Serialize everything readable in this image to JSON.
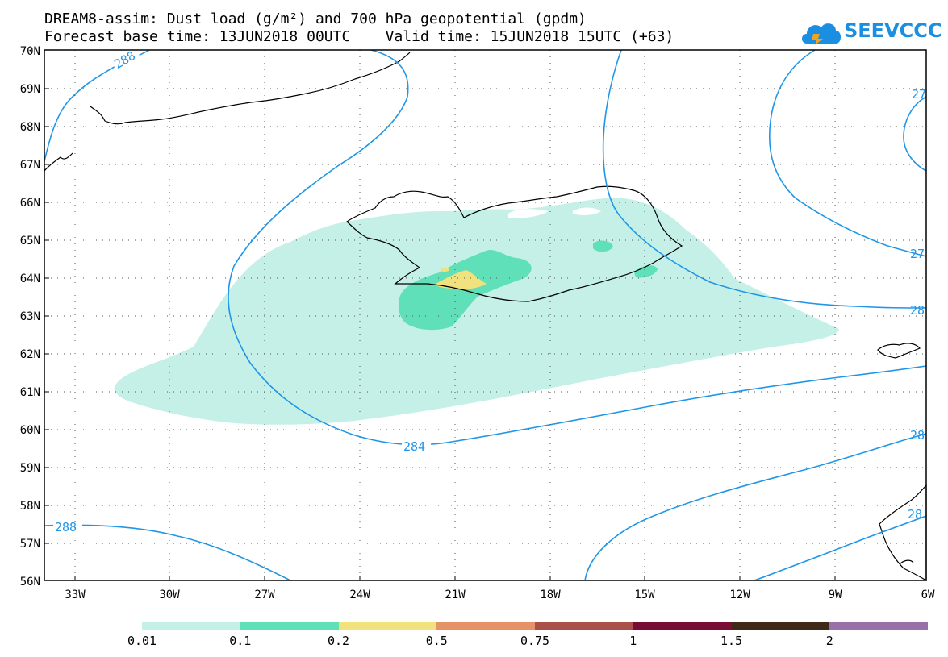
{
  "title": {
    "line1": "DREAM8-assim: Dust load (g/m²) and 700 hPa geopotential (gpdm)",
    "line2": "Forecast base time: 13JUN2018 00UTC    Valid time: 15JUN2018 15UTC (+63)"
  },
  "logo": {
    "text": "SEEVCCC"
  },
  "map": {
    "lat_labels": [
      "70N",
      "69N",
      "68N",
      "67N",
      "66N",
      "65N",
      "64N",
      "63N",
      "62N",
      "61N",
      "60N",
      "59N",
      "58N",
      "57N",
      "56N"
    ],
    "lon_labels": [
      "33W",
      "30W",
      "27W",
      "24W",
      "21W",
      "18W",
      "15W",
      "12W",
      "9W",
      "6W"
    ],
    "contour_labels": [
      "288",
      "284",
      "288",
      "27",
      "27",
      "28",
      "28",
      "28"
    ],
    "colors": {
      "contour": "#1f96e8",
      "dust_001": "#c5f0e8",
      "dust_01": "#5fe0b8",
      "dust_02": "#f2e27e"
    }
  },
  "colorbar": {
    "labels": [
      "0.01",
      "0.1",
      "0.2",
      "0.5",
      "0.75",
      "1",
      "1.5",
      "2"
    ],
    "colors": [
      "#c5f0e8",
      "#5fe0b8",
      "#f2e27e",
      "#e59268",
      "#a9504a",
      "#7a0d36",
      "#3e2a17",
      "#9a70a8"
    ]
  }
}
